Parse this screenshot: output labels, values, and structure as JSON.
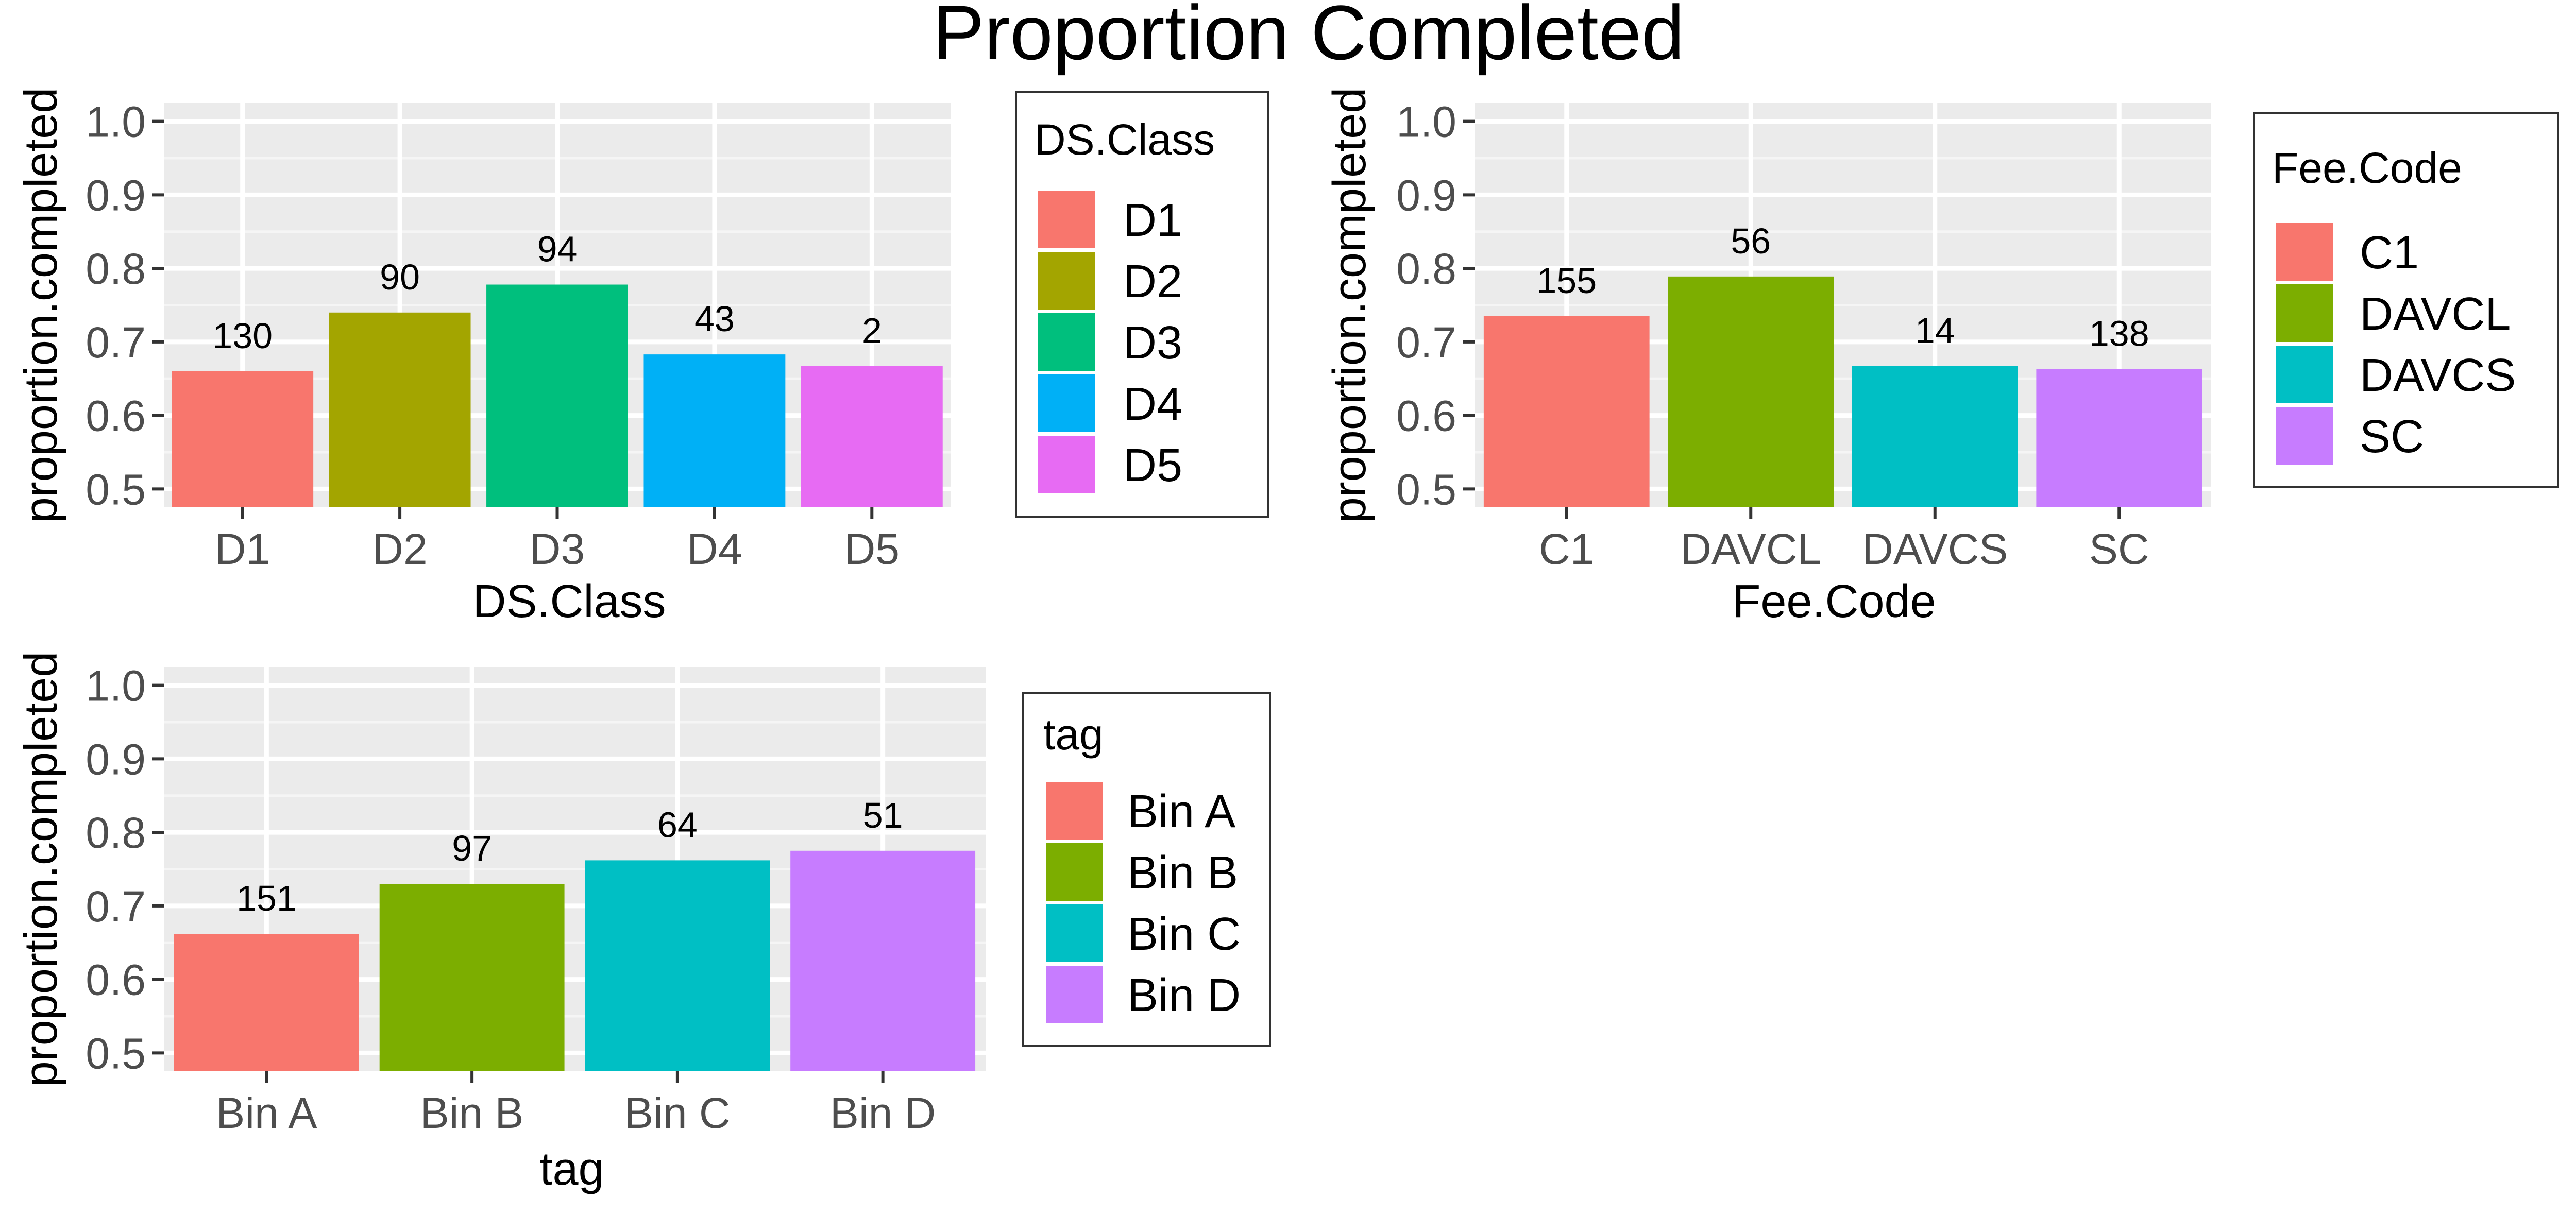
{
  "title": "Proportion Completed",
  "colors": {
    "panel_bg": "#EBEBEB",
    "grid_major": "#FFFFFF",
    "grid_minor": "#F5F5F5",
    "axis_text": "#4D4D4D",
    "text": "#000000"
  },
  "chart_data": [
    {
      "type": "bar",
      "categories": [
        "D1",
        "D2",
        "D3",
        "D4",
        "D5"
      ],
      "values": [
        0.66,
        0.74,
        0.778,
        0.683,
        0.667
      ],
      "labels": [
        "130",
        "90",
        "94",
        "43",
        "2"
      ],
      "colors": [
        "#F8766D",
        "#A3A500",
        "#00BF7D",
        "#00B0F6",
        "#E76BF3"
      ],
      "xlabel": "DS.Class",
      "ylabel": "proportion.completed",
      "ylim": [
        0.475,
        1.025
      ],
      "yticks": [
        "0.5",
        "0.6",
        "0.7",
        "0.8",
        "0.9",
        "1.0"
      ],
      "grid": true,
      "legend": {
        "title": "DS.Class",
        "position": "right",
        "entries": [
          "D1",
          "D2",
          "D3",
          "D4",
          "D5"
        ]
      }
    },
    {
      "type": "bar",
      "categories": [
        "C1",
        "DAVCL",
        "DAVCS",
        "SC"
      ],
      "values": [
        0.735,
        0.789,
        0.667,
        0.663
      ],
      "labels": [
        "155",
        "56",
        "14",
        "138"
      ],
      "colors": [
        "#F8766D",
        "#7CAE00",
        "#00BFC4",
        "#C77CFF"
      ],
      "xlabel": "Fee.Code",
      "ylabel": "proportion.completed",
      "ylim": [
        0.475,
        1.025
      ],
      "yticks": [
        "0.5",
        "0.6",
        "0.7",
        "0.8",
        "0.9",
        "1.0"
      ],
      "grid": true,
      "legend": {
        "title": "Fee.Code",
        "position": "right",
        "entries": [
          "C1",
          "DAVCL",
          "DAVCS",
          "SC"
        ]
      }
    },
    {
      "type": "bar",
      "categories": [
        "Bin A",
        "Bin B",
        "Bin C",
        "Bin D"
      ],
      "values": [
        0.662,
        0.73,
        0.762,
        0.775
      ],
      "labels": [
        "151",
        "97",
        "64",
        "51"
      ],
      "colors": [
        "#F8766D",
        "#7CAE00",
        "#00BFC4",
        "#C77CFF"
      ],
      "xlabel": "tag",
      "ylabel": "proportion.completed",
      "ylim": [
        0.475,
        1.025
      ],
      "yticks": [
        "0.5",
        "0.6",
        "0.7",
        "0.8",
        "0.9",
        "1.0"
      ],
      "grid": true,
      "legend": {
        "title": "tag",
        "position": "right",
        "entries": [
          "Bin A",
          "Bin B",
          "Bin C",
          "Bin D"
        ]
      }
    }
  ]
}
